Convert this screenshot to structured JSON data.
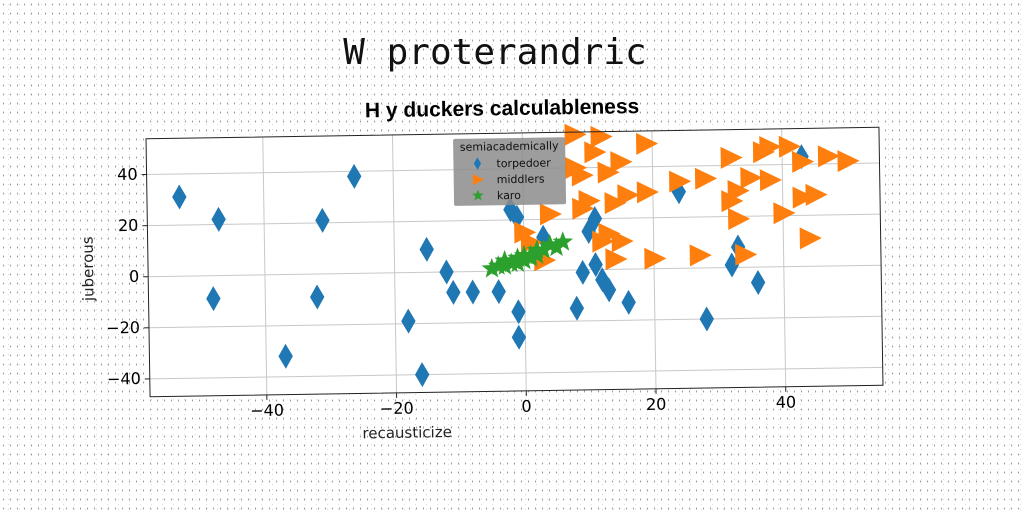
{
  "figure": {
    "suptitle": "W proterandric"
  },
  "chart_data": {
    "type": "scatter",
    "title": "H y duckers calculableness",
    "xlabel": "recausticize",
    "ylabel": "juberous",
    "xlim": [
      -58,
      55
    ],
    "ylim": [
      -47,
      54
    ],
    "xticks": [
      -40,
      -20,
      0,
      20,
      40
    ],
    "yticks": [
      -40,
      -20,
      0,
      20,
      40
    ],
    "grid": true,
    "legend": {
      "title": "semiacademically",
      "position": "upper-center"
    },
    "series": [
      {
        "name": "torpedoer",
        "marker": "diamond",
        "color": "#1f77b4",
        "points": [
          [
            -53,
            31
          ],
          [
            -47,
            22
          ],
          [
            -48,
            -9
          ],
          [
            -31,
            21
          ],
          [
            -32,
            -9
          ],
          [
            -26,
            38
          ],
          [
            -37,
            -32
          ],
          [
            -18,
            -19
          ],
          [
            -16,
            -40
          ],
          [
            -15,
            9
          ],
          [
            -12,
            0
          ],
          [
            -11,
            -8
          ],
          [
            -8,
            -8
          ],
          [
            -4,
            -8
          ],
          [
            -2,
            24
          ],
          [
            -1,
            21
          ],
          [
            -1,
            -16
          ],
          [
            -1,
            -26
          ],
          [
            3,
            13
          ],
          [
            8,
            -15
          ],
          [
            9,
            -1
          ],
          [
            10,
            15
          ],
          [
            11,
            2
          ],
          [
            11,
            20
          ],
          [
            12,
            -4
          ],
          [
            13,
            -8
          ],
          [
            16,
            -13
          ],
          [
            24,
            30
          ],
          [
            28,
            -20
          ],
          [
            32,
            1
          ],
          [
            33,
            8
          ],
          [
            36,
            -6
          ],
          [
            43,
            43
          ]
        ]
      },
      {
        "name": "middlers",
        "marker": "triangle-right",
        "color": "#ff7f0e",
        "points": [
          [
            0,
            15
          ],
          [
            1,
            11
          ],
          [
            3,
            4
          ],
          [
            4,
            22
          ],
          [
            8,
            53
          ],
          [
            8,
            40
          ],
          [
            9,
            37
          ],
          [
            9,
            24
          ],
          [
            10,
            27
          ],
          [
            11,
            46
          ],
          [
            12,
            52
          ],
          [
            12,
            11
          ],
          [
            13,
            38
          ],
          [
            13,
            14
          ],
          [
            14,
            26
          ],
          [
            14,
            4
          ],
          [
            15,
            42
          ],
          [
            15,
            11
          ],
          [
            16,
            29
          ],
          [
            19,
            49
          ],
          [
            19,
            30
          ],
          [
            20,
            4
          ],
          [
            24,
            34
          ],
          [
            27,
            5
          ],
          [
            28,
            35
          ],
          [
            32,
            43
          ],
          [
            32,
            26
          ],
          [
            33,
            19
          ],
          [
            33,
            30
          ],
          [
            34,
            5
          ],
          [
            35,
            35
          ],
          [
            37,
            45
          ],
          [
            38,
            47
          ],
          [
            38,
            34
          ],
          [
            40,
            21
          ],
          [
            41,
            47
          ],
          [
            43,
            41
          ],
          [
            43,
            27
          ],
          [
            44,
            11
          ],
          [
            45,
            28
          ],
          [
            47,
            43
          ],
          [
            50,
            41
          ]
        ]
      },
      {
        "name": "karo",
        "marker": "star",
        "color": "#2ca02c",
        "points": [
          [
            -5,
            1
          ],
          [
            -4,
            2
          ],
          [
            -3,
            2
          ],
          [
            -3,
            4
          ],
          [
            -2,
            3
          ],
          [
            -1,
            5
          ],
          [
            -1,
            3
          ],
          [
            0,
            4
          ],
          [
            0,
            6
          ],
          [
            1,
            6
          ],
          [
            1,
            5
          ],
          [
            2,
            8
          ],
          [
            2,
            6
          ],
          [
            3,
            8
          ],
          [
            4,
            10
          ],
          [
            5,
            9
          ],
          [
            6,
            11
          ]
        ]
      }
    ]
  }
}
